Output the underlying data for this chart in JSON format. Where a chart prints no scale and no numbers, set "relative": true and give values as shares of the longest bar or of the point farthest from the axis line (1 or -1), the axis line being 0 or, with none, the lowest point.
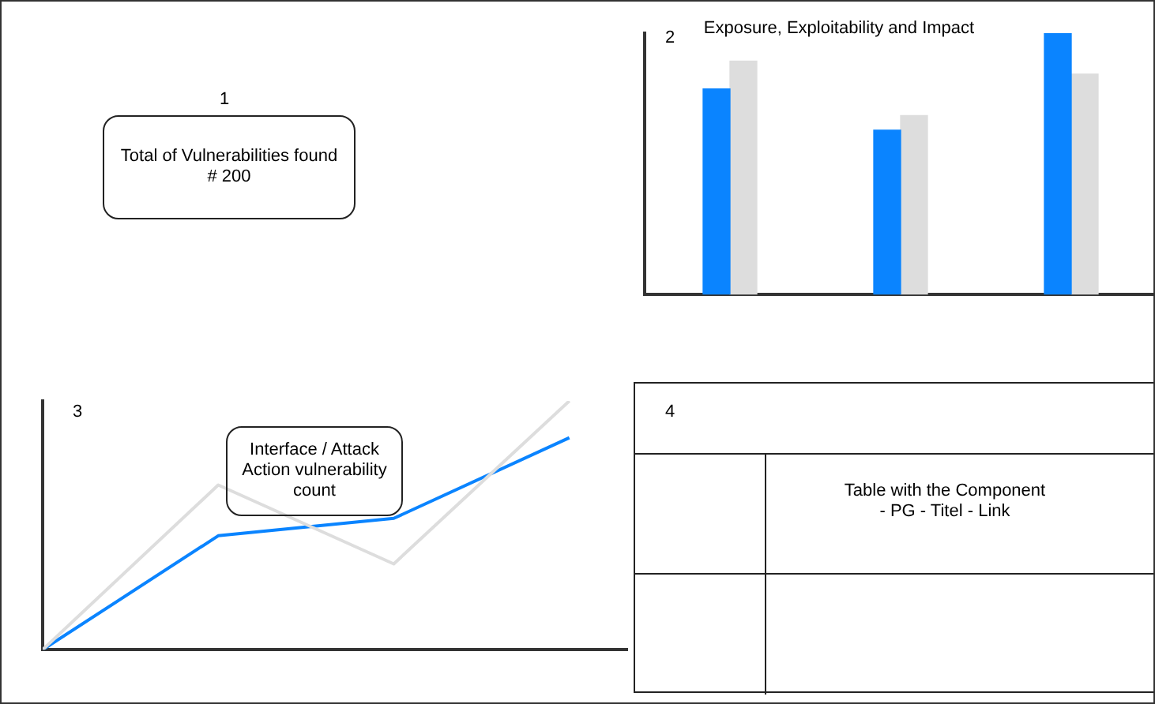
{
  "chart_data": [
    {
      "type": "other",
      "annotations": [
        "1",
        "Total of Vulnerabilities found\n# 200"
      ]
    },
    {
      "type": "bar",
      "title": "Exposure, Exploitability and Impact",
      "annotations": [
        "2"
      ],
      "categories": [
        null,
        null,
        null
      ],
      "relative": true,
      "grid": false,
      "legend": false,
      "series": [
        {
          "color": "#0a84ff",
          "values": [
            0.787,
            0.629,
            1
          ]
        },
        {
          "color": "#dddddd",
          "values": [
            0.893,
            0.685,
            0.843
          ]
        }
      ]
    },
    {
      "type": "line",
      "annotations": [
        "3",
        "Interface / Attack\nAction vulnerability\ncount"
      ],
      "categories": [
        null,
        null,
        null,
        null
      ],
      "relative": true,
      "grid": false,
      "legend": false,
      "marker": "none",
      "series": [
        {
          "color": "#dddddd",
          "values": [
            0,
            0.662,
            0.345,
            1
          ]
        },
        {
          "color": "#0a84ff",
          "values": [
            0,
            0.458,
            0.528,
            0.852
          ]
        }
      ]
    },
    {
      "type": "other",
      "annotations": [
        "4",
        "Table with the Component\n- PG - Titel - Link"
      ]
    }
  ]
}
